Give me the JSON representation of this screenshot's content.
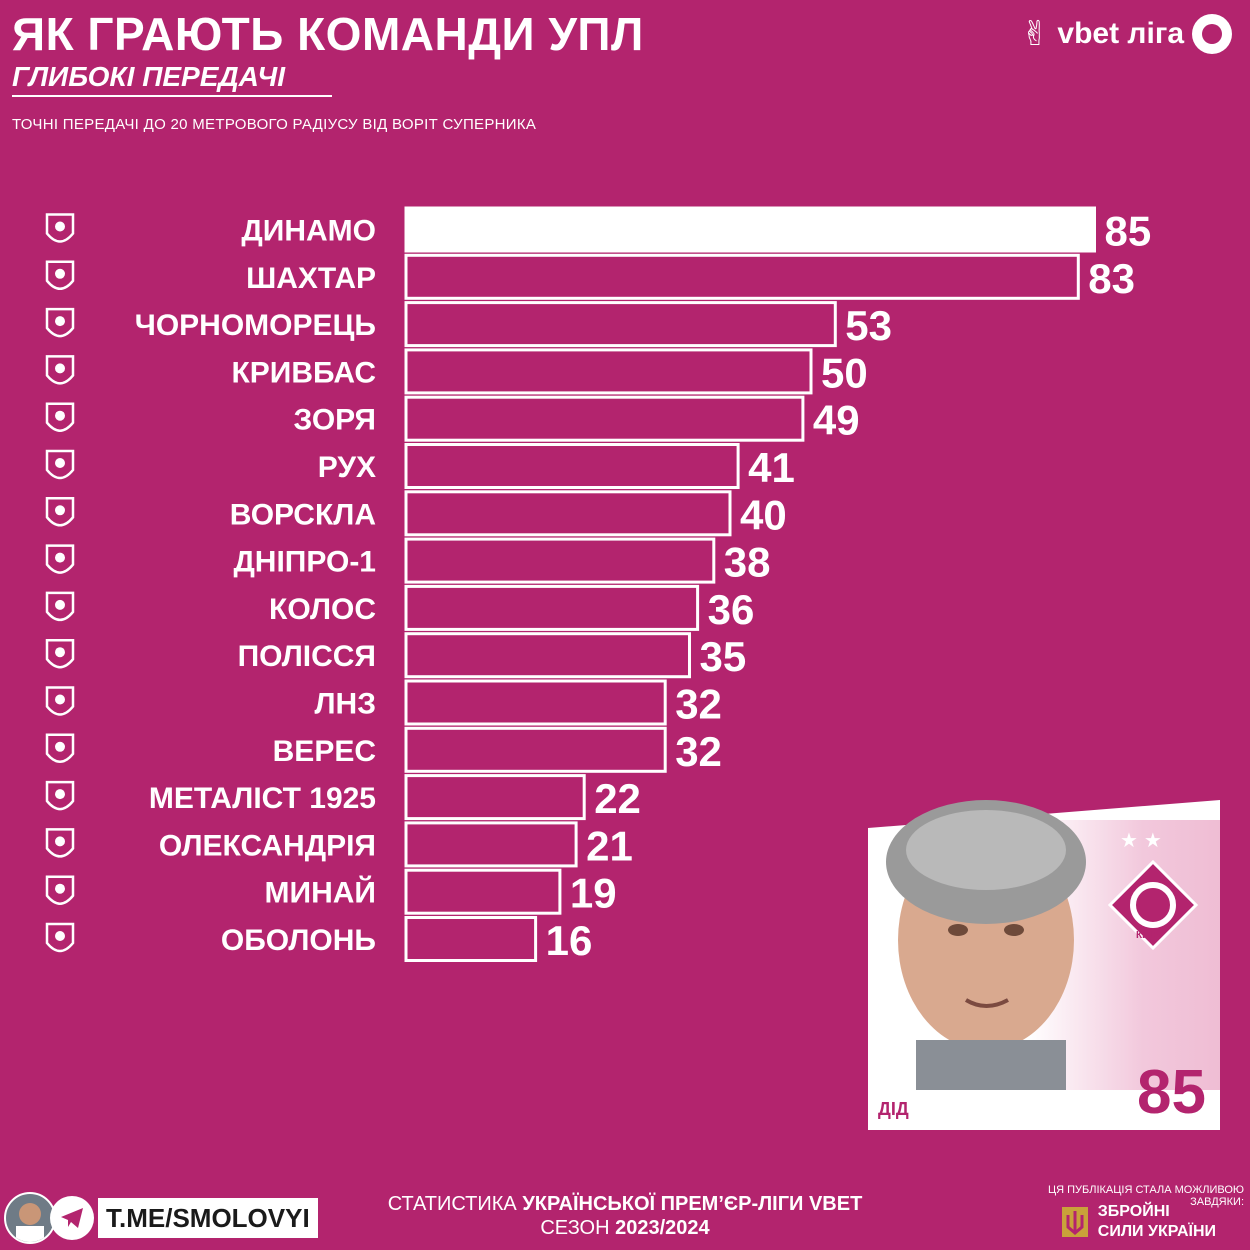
{
  "header": {
    "title": "ЯК ГРАЮТЬ КОМАНДИ УПЛ",
    "subtitle": "ГЛИБОКІ ПЕРЕДАЧІ",
    "description": "ТОЧНІ ПЕРЕДАЧІ ДО 20 МЕТРОВОГО РАДІУСУ ВІД ВОРІТ СУПЕРНИКА",
    "brand": "vbet ліга"
  },
  "chart_data": {
    "type": "bar",
    "orientation": "horizontal",
    "categories": [
      "ДИНАМО",
      "ШАХТАР",
      "ЧОРНОМОРЕЦЬ",
      "КРИВБАС",
      "ЗОРЯ",
      "РУХ",
      "ВОРСКЛА",
      "ДНІПРО-1",
      "КОЛОС",
      "ПОЛІССЯ",
      "ЛНЗ",
      "ВЕРЕС",
      "МЕТАЛІСТ 1925",
      "ОЛЕКСАНДРІЯ",
      "МИНАЙ",
      "ОБОЛОНЬ"
    ],
    "values": [
      85,
      83,
      53,
      50,
      49,
      41,
      40,
      38,
      36,
      35,
      32,
      32,
      22,
      21,
      19,
      16
    ],
    "highlight": "ДИНАМО",
    "highlight_color": "#ffffff",
    "bar_outline_color": "#ffffff",
    "title": "",
    "xlabel": "",
    "ylabel": "",
    "grid": false
  },
  "card": {
    "name": "ДІД",
    "value": "85",
    "city": "КИЇВ",
    "stars": "★★"
  },
  "footer": {
    "telegram": "T.ME/SMOLOVYI",
    "stat_prefix": "СТАТИСТИКА ",
    "stat_bold": "УКРАЇНСЬКОЇ ПРЕМ’ЄР-ЛІГИ VBET",
    "season_prefix": "СЕЗОН ",
    "season_bold": "2023/2024",
    "support_text": "ЦЯ ПУБЛІКАЦІЯ СТАЛА МОЖЛИВОЮ ЗАВДЯКИ:",
    "zsu_line1": "ЗБРОЙНІ",
    "zsu_line2": "СИЛИ УКРАЇНИ"
  },
  "colors": {
    "background": "#b3246e",
    "foreground": "#ffffff"
  },
  "icons": [
    "peace-hand-icon",
    "league-ball-icon",
    "club-crest-icon",
    "telegram-icon",
    "trident-icon"
  ]
}
